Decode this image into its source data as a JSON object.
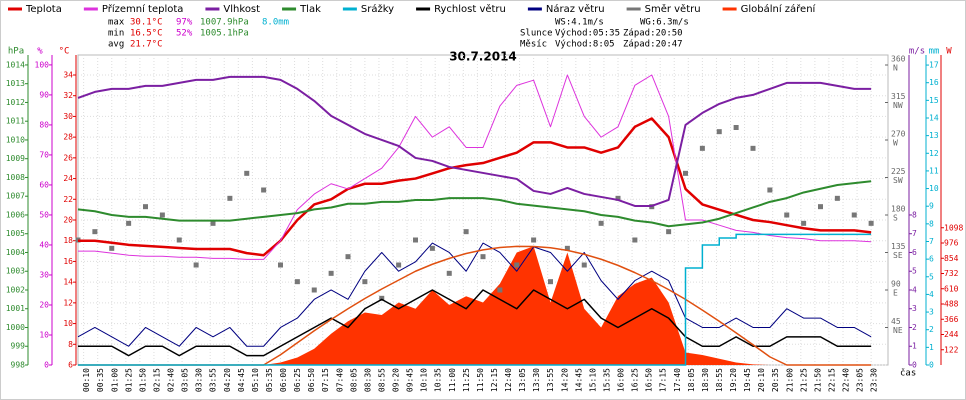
{
  "chart_data": {
    "type": "line",
    "title": "30.7.2014",
    "x_label": "čas",
    "xlim": [
      "00:00",
      "24:00"
    ],
    "xticks": [
      "00:10",
      "00:35",
      "01:00",
      "01:25",
      "01:50",
      "02:15",
      "02:40",
      "03:05",
      "03:30",
      "03:55",
      "04:20",
      "04:45",
      "05:10",
      "05:35",
      "06:00",
      "06:25",
      "06:50",
      "07:15",
      "07:40",
      "08:05",
      "08:30",
      "08:55",
      "09:20",
      "09:45",
      "10:10",
      "10:35",
      "11:00",
      "11:25",
      "11:50",
      "12:15",
      "12:40",
      "13:05",
      "13:30",
      "13:55",
      "14:20",
      "14:45",
      "15:10",
      "15:35",
      "16:00",
      "16:25",
      "16:50",
      "17:15",
      "17:40",
      "18:05",
      "18:30",
      "18:55",
      "19:20",
      "19:45",
      "20:10",
      "20:35",
      "21:00",
      "21:25",
      "21:50",
      "22:15",
      "22:40",
      "23:05",
      "23:30"
    ],
    "grid": true,
    "stats": [
      {
        "label": "max",
        "values": [
          "30.1°C",
          "97%",
          "1007.9hPa",
          "8.0mm"
        ]
      },
      {
        "label": "min",
        "values": [
          "16.5°C",
          "52%",
          "1005.1hPa"
        ]
      },
      {
        "label": "avg",
        "values": [
          "21.7°C"
        ]
      }
    ],
    "stats_colors": [
      "#e00000",
      "#cc00cc",
      "#2e8b2e",
      "#00b0d0"
    ],
    "wind_stats": [
      "WS:4.1m/s",
      "WG:6.3m/s"
    ],
    "astro": [
      {
        "label": "Slunce",
        "rise": "Východ:05:35",
        "set": "Západ:20:50"
      },
      {
        "label": "Měsíc",
        "rise": "Východ:8:05",
        "set": "Západ:20:47"
      }
    ],
    "axes": {
      "pressure": {
        "label": "hPa",
        "color": "#2e8b2e",
        "side": "left",
        "ylim": [
          998,
          1014.53
        ],
        "yticks": [
          998,
          999,
          1000,
          1001,
          1002,
          1003,
          1004,
          1005,
          1006,
          1007,
          1008,
          1009,
          1010,
          1011,
          1012,
          1013,
          1014
        ]
      },
      "humidity": {
        "label": "%",
        "color": "#cc00cc",
        "side": "left",
        "ylim": [
          0,
          103.3
        ],
        "yticks": [
          0,
          10,
          20,
          30,
          40,
          50,
          60,
          70,
          80,
          90,
          100
        ]
      },
      "temperature": {
        "label": "°C",
        "color": "#e00000",
        "side": "left",
        "ylim": [
          6,
          35.93
        ],
        "yticks": [
          6,
          8,
          10,
          12,
          14,
          16,
          18,
          20,
          22,
          24,
          26,
          28,
          30,
          32,
          34
        ]
      },
      "direction": {
        "color": "#666666",
        "side": "inner",
        "ylim": [
          0,
          372
        ],
        "yticks": [
          45,
          90,
          135,
          180,
          225,
          270,
          315,
          360
        ],
        "tick_names": [
          "NE",
          "E",
          "SE",
          "S",
          "SW",
          "W",
          "NW",
          "N"
        ]
      },
      "wind": {
        "label": "m/s",
        "color": "#7b1fa2",
        "side": "right",
        "ylim": [
          0,
          16.53
        ],
        "yticks": [
          0,
          1,
          2,
          3,
          4,
          5,
          6,
          7,
          8
        ]
      },
      "rain": {
        "label": "mm",
        "color": "#00b0d0",
        "side": "right",
        "ylim": [
          0,
          17.57
        ],
        "yticks": [
          0,
          1,
          2,
          3,
          4,
          5,
          6,
          7,
          8,
          9,
          10,
          11,
          12,
          13,
          14,
          15,
          16,
          17
        ]
      },
      "radiation": {
        "label": "W",
        "color": "#e00000",
        "side": "right",
        "ylim": [
          0,
          2480
        ],
        "yticks": [
          122,
          244,
          366,
          488,
          610,
          732,
          854,
          976,
          1098
        ]
      }
    },
    "x": [
      "00:00",
      "00:30",
      "01:00",
      "01:30",
      "02:00",
      "02:30",
      "03:00",
      "03:30",
      "04:00",
      "04:30",
      "05:00",
      "05:30",
      "06:00",
      "06:30",
      "07:00",
      "07:30",
      "08:00",
      "08:30",
      "09:00",
      "09:30",
      "10:00",
      "10:30",
      "11:00",
      "11:30",
      "12:00",
      "12:30",
      "13:00",
      "13:30",
      "14:00",
      "14:30",
      "15:00",
      "15:30",
      "16:00",
      "16:30",
      "17:00",
      "17:30",
      "18:00",
      "18:30",
      "19:00",
      "19:30",
      "20:00",
      "20:30",
      "21:00",
      "21:30",
      "22:00",
      "22:30",
      "23:00",
      "23:30"
    ],
    "series": [
      {
        "name": "Teplota",
        "type": "line",
        "axis": "temperature",
        "color": "#e00000",
        "width": 2.5,
        "values": [
          18,
          18,
          17.8,
          17.6,
          17.5,
          17.4,
          17.3,
          17.2,
          17.2,
          17.2,
          16.8,
          16.6,
          18,
          20,
          21.5,
          22,
          23,
          23.5,
          23.5,
          23.8,
          24,
          24.5,
          25,
          25.3,
          25.5,
          26,
          26.5,
          27.5,
          27.5,
          27,
          27,
          26.5,
          27,
          29,
          29.8,
          28,
          23,
          21.5,
          21,
          20.5,
          20,
          19.8,
          19.5,
          19.2,
          19,
          19,
          19,
          18.8
        ]
      },
      {
        "name": "Přízemní teplota",
        "type": "line",
        "axis": "temperature",
        "color": "#dd33dd",
        "width": 1,
        "values": [
          17,
          17,
          16.8,
          16.6,
          16.5,
          16.5,
          16.4,
          16.4,
          16.3,
          16.3,
          16.2,
          16.2,
          18,
          21,
          22.5,
          23.5,
          23,
          24,
          25,
          27,
          30,
          28,
          29,
          27,
          27,
          31,
          33,
          33.5,
          29,
          34,
          30,
          28,
          29,
          33,
          34,
          30,
          20,
          20,
          19.5,
          19,
          18.8,
          18.5,
          18.3,
          18.2,
          18,
          18,
          18,
          17.9
        ]
      },
      {
        "name": "Vlhkost",
        "type": "line",
        "axis": "humidity",
        "color": "#7b1fa2",
        "width": 2,
        "values": [
          89,
          91,
          92,
          92,
          93,
          93,
          94,
          95,
          95,
          96,
          96,
          96,
          95,
          92,
          88,
          83,
          80,
          77,
          75,
          73,
          69,
          68,
          66,
          65,
          64,
          63,
          62,
          58,
          57,
          59,
          57,
          56,
          55,
          53,
          53,
          55,
          80,
          84,
          87,
          89,
          90,
          92,
          94,
          94,
          94,
          93,
          92,
          92
        ]
      },
      {
        "name": "Tlak",
        "type": "line",
        "axis": "pressure",
        "color": "#2e8b2e",
        "width": 2,
        "values": [
          1006.3,
          1006.2,
          1006.0,
          1005.9,
          1005.9,
          1005.8,
          1005.7,
          1005.7,
          1005.7,
          1005.7,
          1005.8,
          1005.9,
          1006.0,
          1006.1,
          1006.3,
          1006.4,
          1006.6,
          1006.6,
          1006.7,
          1006.7,
          1006.8,
          1006.8,
          1006.9,
          1006.9,
          1006.9,
          1006.8,
          1006.6,
          1006.5,
          1006.4,
          1006.3,
          1006.2,
          1006.0,
          1005.9,
          1005.7,
          1005.6,
          1005.4,
          1005.5,
          1005.6,
          1005.8,
          1006.1,
          1006.4,
          1006.7,
          1006.9,
          1007.2,
          1007.4,
          1007.6,
          1007.7,
          1007.8
        ]
      },
      {
        "name": "Srážky",
        "type": "step",
        "axis": "rain",
        "color": "#00b0d0",
        "width": 1.5,
        "values": [
          0,
          0,
          0,
          0,
          0,
          0,
          0,
          0,
          0,
          0,
          0,
          0,
          0,
          0,
          0,
          0,
          0,
          0,
          0,
          0,
          0,
          0,
          0,
          0,
          0,
          0,
          0,
          0,
          0,
          0,
          0,
          0,
          0,
          0,
          0,
          0,
          5.5,
          6.8,
          7.2,
          7.4,
          7.4,
          7.4,
          7.4,
          7.4,
          7.4,
          7.4,
          7.4,
          7.4
        ]
      },
      {
        "name": "Rychlost větru",
        "type": "line",
        "axis": "wind",
        "color": "#000000",
        "width": 1.5,
        "values": [
          1,
          1,
          1,
          0.5,
          1,
          1,
          0.5,
          1,
          1,
          1,
          0.5,
          0.5,
          1,
          1.5,
          2,
          2.5,
          2,
          3,
          3.5,
          3,
          3.5,
          4,
          3.5,
          3,
          4,
          3.5,
          3,
          4,
          3.5,
          3,
          3.5,
          2.5,
          2,
          2.5,
          3,
          2.5,
          1.5,
          1,
          1,
          1.5,
          1,
          1,
          1.5,
          1.5,
          1.5,
          1,
          1,
          1
        ]
      },
      {
        "name": "Náraz větru",
        "type": "line",
        "axis": "wind",
        "color": "#000080",
        "width": 1,
        "values": [
          1.5,
          2,
          1.5,
          1,
          2,
          1.5,
          1,
          2,
          1.5,
          2,
          1,
          1,
          2,
          2.5,
          3.5,
          4,
          3.5,
          5,
          6,
          5,
          5.5,
          6.5,
          6,
          5,
          6.5,
          6,
          5,
          6.3,
          6,
          5,
          6,
          4.5,
          3.5,
          4.5,
          5,
          4.5,
          2.5,
          2,
          2,
          2.5,
          2,
          2,
          3,
          2.5,
          2.5,
          2,
          2,
          1.5
        ]
      },
      {
        "name": "Směr větru",
        "type": "scatter",
        "axis": "direction",
        "color": "#777777",
        "values": [
          150,
          160,
          140,
          170,
          190,
          180,
          150,
          120,
          170,
          200,
          230,
          210,
          120,
          100,
          90,
          110,
          130,
          100,
          80,
          120,
          150,
          140,
          110,
          160,
          130,
          90,
          120,
          150,
          100,
          140,
          120,
          170,
          200,
          150,
          190,
          160,
          230,
          260,
          280,
          285,
          260,
          210,
          180,
          170,
          190,
          200,
          180,
          170
        ]
      },
      {
        "name": "Globální záření",
        "type": "area",
        "axis": "radiation",
        "color": "#ff3300",
        "values": [
          0,
          0,
          0,
          0,
          0,
          0,
          0,
          0,
          0,
          0,
          0,
          0,
          20,
          60,
          130,
          250,
          350,
          420,
          400,
          500,
          450,
          600,
          480,
          550,
          500,
          650,
          900,
          950,
          500,
          900,
          450,
          300,
          550,
          650,
          700,
          500,
          100,
          80,
          50,
          20,
          5,
          0,
          0,
          0,
          0,
          0,
          0,
          0
        ]
      },
      {
        "type": "line",
        "axis": "radiation",
        "color": "#e05010",
        "width": 1.5,
        "values": [
          0,
          0,
          0,
          0,
          0,
          0,
          0,
          0,
          0,
          0,
          0,
          0,
          82,
          178,
          274,
          364,
          450,
          532,
          608,
          679,
          750,
          806,
          853,
          892,
          921,
          940,
          949,
          948,
          938,
          917,
          886,
          846,
          797,
          739,
          675,
          603,
          525,
          439,
          350,
          257,
          162,
          65,
          0,
          0,
          0,
          0,
          0,
          0
        ]
      }
    ]
  }
}
